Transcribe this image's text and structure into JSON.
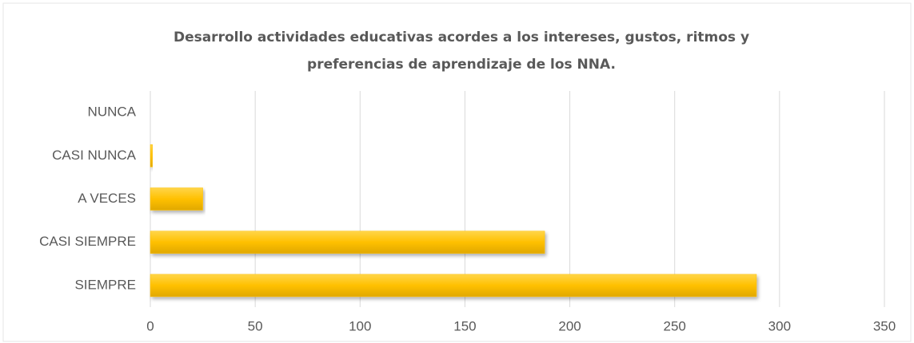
{
  "chart_data": {
    "type": "bar",
    "orientation": "horizontal",
    "title": "Desarrollo actividades educativas acordes a los intereses, gustos, ritmos y preferencias de aprendizaje de los NNA.",
    "categories": [
      "NUNCA",
      "CASI NUNCA",
      "A VECES",
      "CASI SIEMPRE",
      "SIEMPRE"
    ],
    "values": [
      0,
      1,
      25,
      188,
      289
    ],
    "color": "#ffc000",
    "xlim": [
      0,
      350
    ],
    "xticks": [
      0,
      50,
      100,
      150,
      200,
      250,
      300,
      350
    ],
    "grid": true
  }
}
